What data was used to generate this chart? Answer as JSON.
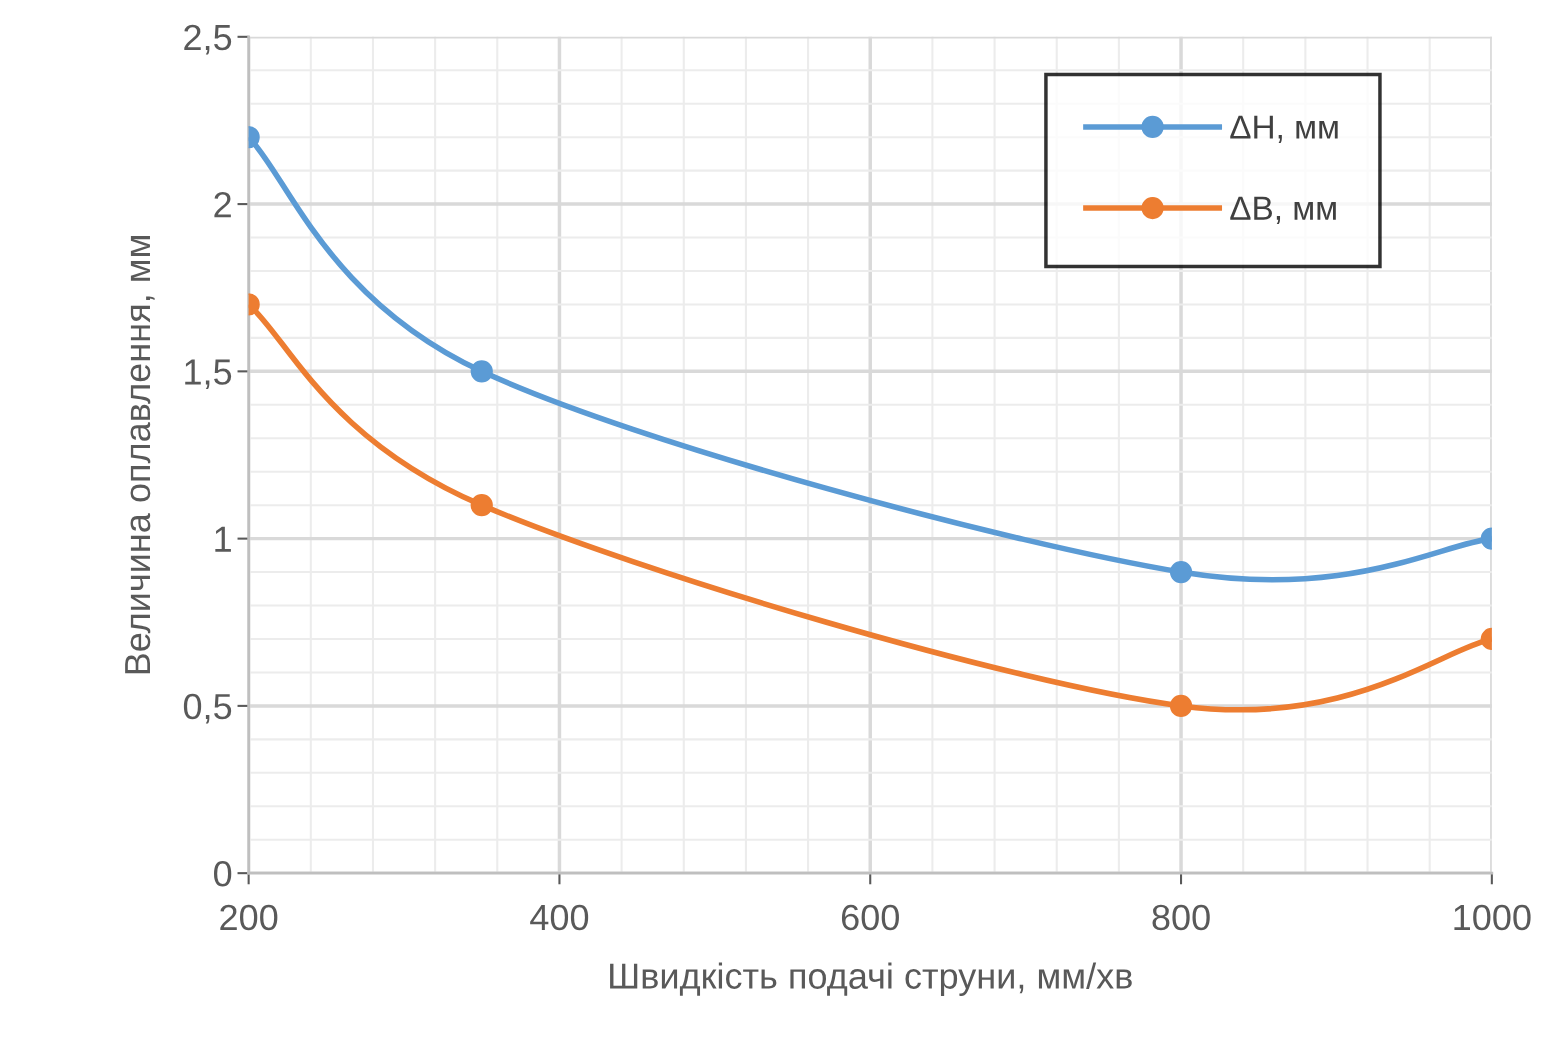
{
  "chart_data": {
    "type": "line",
    "xlabel": "Швидкість подачі струни, мм/хв",
    "ylabel": "Величина оплавлення, мм",
    "x": [
      200,
      350,
      800,
      1000
    ],
    "series": [
      {
        "name": "ΔH, мм",
        "color": "#5b9bd5",
        "values": [
          2.2,
          1.5,
          0.9,
          1.0
        ]
      },
      {
        "name": "ΔB, мм",
        "color": "#ed7d31",
        "values": [
          1.7,
          1.1,
          0.5,
          0.7
        ]
      }
    ],
    "xlim": [
      200,
      1000
    ],
    "xticks": [
      200,
      400,
      600,
      800,
      1000
    ],
    "ylim": [
      0,
      2.5
    ],
    "yticks": [
      0,
      {
        "value": 0.5,
        "label": "0,5"
      },
      1,
      {
        "value": 1.5,
        "label": "1,5"
      },
      2,
      {
        "value": 2.5,
        "label": "2,5"
      }
    ],
    "grid": true,
    "legend": "top right",
    "marker": "circle",
    "line_style": "solid"
  }
}
